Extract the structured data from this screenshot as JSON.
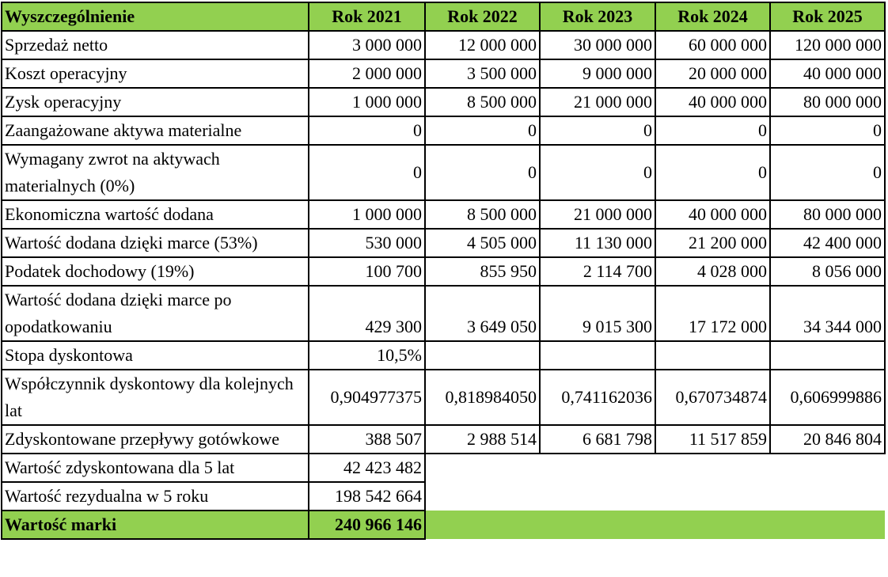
{
  "table": {
    "header": [
      "Wyszczególnienie",
      "Rok 2021",
      "Rok 2022",
      "Rok 2023",
      "Rok 2024",
      "Rok 2025"
    ],
    "rows": [
      [
        "Sprzedaż netto",
        "3 000 000",
        "12 000 000",
        "30 000 000",
        "60 000 000",
        "120 000 000"
      ],
      [
        "Koszt operacyjny",
        "2 000 000",
        "3 500 000",
        "9 000 000",
        "20 000 000",
        "40 000 000"
      ],
      [
        "Zysk operacyjny",
        "1 000 000",
        "8 500 000",
        "21 000 000",
        "40 000 000",
        "80 000 000"
      ],
      [
        "Zaangażowane aktywa materialne",
        "0",
        "0",
        "0",
        "0",
        "0"
      ],
      [
        "Wymagany zwrot na aktywach materialnych (0%)",
        "0",
        "0",
        "0",
        "0",
        "0"
      ],
      [
        "Ekonomiczna wartość dodana",
        "1 000 000",
        "8 500 000",
        "21 000 000",
        "40 000 000",
        "80 000 000"
      ],
      [
        "Wartość dodana dzięki marce (53%)",
        "530 000",
        "4 505 000",
        "11 130 000",
        "21 200 000",
        "42 400 000"
      ],
      [
        "Podatek dochodowy (19%)",
        "100 700",
        "855 950",
        "2 114 700",
        "4 028 000",
        "8 056 000"
      ],
      [
        "Wartość dodana dzięki marce po opodatkowaniu",
        "429 300",
        "3 649 050",
        "9 015 300",
        "17 172 000",
        "34 344 000"
      ],
      [
        "Stopa dyskontowa",
        "10,5%"
      ],
      [
        "Współczynnik dyskontowy dla kolejnych lat",
        "0,904977375",
        "0,818984050",
        "0,741162036",
        "0,670734874",
        "0,606999886"
      ],
      [
        "Zdyskontowane przepływy gotówkowe",
        "388 507",
        "2 988 514",
        "6 681 798",
        "11 517 859",
        "20 846 804"
      ],
      [
        "Wartość zdyskontowana dla 5 lat",
        "42 423 482"
      ],
      [
        "Wartość rezydualna w 5 roku",
        "198 542 664"
      ],
      [
        "Wartość marki",
        "240 966 146"
      ]
    ]
  }
}
